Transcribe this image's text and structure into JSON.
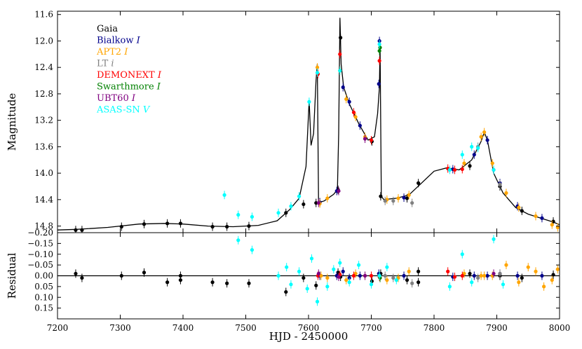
{
  "chart_data": [
    {
      "type": "scatter",
      "panel": "main",
      "xlabel": "",
      "ylabel": "Magnitude",
      "xlim": [
        7200,
        8000
      ],
      "ylim": [
        14.9,
        11.55
      ],
      "y_inverted": true,
      "yticks": [
        "11.6",
        "12.0",
        "12.4",
        "12.8",
        "13.2",
        "13.6",
        "14.0",
        "14.4",
        "14.8"
      ],
      "legend_position": "top-left",
      "legend": [
        {
          "name": "Gaia",
          "band": "",
          "color": "#000000"
        },
        {
          "name": "Bialkow",
          "band": "I",
          "color": "#00008b"
        },
        {
          "name": "APT2",
          "band": "I",
          "color": "#ffa500"
        },
        {
          "name": "LT",
          "band": "i",
          "color": "#808080"
        },
        {
          "name": "DEMONEXT",
          "band": "I",
          "color": "#ff0000"
        },
        {
          "name": "Swarthmore",
          "band": "I",
          "color": "#008000"
        },
        {
          "name": "UBT60",
          "band": "I",
          "color": "#800080"
        },
        {
          "name": "ASAS-SN",
          "band": "V",
          "color": "#00ffff"
        }
      ],
      "model_curve": {
        "color": "#000000",
        "x": [
          7200,
          7230,
          7280,
          7330,
          7370,
          7400,
          7440,
          7480,
          7520,
          7550,
          7570,
          7585,
          7596,
          7601,
          7604,
          7608,
          7612,
          7614,
          7616,
          7618,
          7625,
          7640,
          7646,
          7648,
          7650,
          7652,
          7656,
          7665,
          7680,
          7695,
          7705,
          7710,
          7713,
          7714,
          7716,
          7720,
          7740,
          7760,
          7780,
          7800,
          7820,
          7840,
          7860,
          7875,
          7880,
          7885,
          7895,
          7910,
          7930,
          7950,
          7970,
          7990,
          8000
        ],
        "y": [
          14.86,
          14.85,
          14.82,
          14.77,
          14.76,
          14.77,
          14.8,
          14.81,
          14.79,
          14.72,
          14.55,
          14.38,
          13.9,
          12.9,
          13.58,
          13.4,
          12.6,
          12.35,
          14.45,
          14.44,
          14.42,
          14.32,
          14.25,
          13.4,
          11.65,
          12.35,
          12.7,
          12.95,
          13.25,
          13.5,
          13.45,
          13.1,
          12.7,
          12.05,
          14.35,
          14.4,
          14.38,
          14.33,
          14.15,
          13.97,
          13.92,
          13.95,
          13.8,
          13.52,
          13.38,
          13.5,
          14.0,
          14.3,
          14.52,
          14.62,
          14.68,
          14.74,
          14.78
        ]
      },
      "series": [
        {
          "name": "Gaia",
          "color": "#000000",
          "points": [
            [
              7229,
              14.86
            ],
            [
              7239,
              14.86
            ],
            [
              7302,
              14.81
            ],
            [
              7338,
              14.77
            ],
            [
              7375,
              14.76
            ],
            [
              7396,
              14.76
            ],
            [
              7447,
              14.81
            ],
            [
              7470,
              14.81
            ],
            [
              7505,
              14.8
            ],
            [
              7564,
              14.6
            ],
            [
              7592,
              14.47
            ],
            [
              7612,
              14.45
            ],
            [
              7618,
              14.44
            ],
            [
              7647,
              14.25
            ],
            [
              7651,
              11.95
            ],
            [
              7701,
              13.52
            ],
            [
              7715,
              14.35
            ],
            [
              7757,
              14.38
            ],
            [
              7775,
              14.15
            ],
            [
              7857,
              13.89
            ],
            [
              7905,
              14.2
            ],
            [
              7940,
              14.57
            ],
            [
              7990,
              14.73
            ]
          ]
        },
        {
          "name": "Bialkow I",
          "color": "#00008b",
          "points": [
            [
              7618,
              14.44
            ],
            [
              7645,
              14.27
            ],
            [
              7655,
              12.7
            ],
            [
              7665,
              12.92
            ],
            [
              7682,
              13.28
            ],
            [
              7712,
              12.65
            ],
            [
              7713,
              12.0
            ],
            [
              7752,
              14.37
            ],
            [
              7830,
              13.94
            ],
            [
              7864,
              13.72
            ],
            [
              7885,
              13.5
            ],
            [
              7905,
              14.15
            ],
            [
              7933,
              14.5
            ],
            [
              7972,
              14.68
            ]
          ]
        },
        {
          "name": "APT2 I",
          "color": "#ffa500",
          "points": [
            [
              7614,
              12.4
            ],
            [
              7618,
              14.46
            ],
            [
              7630,
              14.38
            ],
            [
              7650,
              12.45
            ],
            [
              7660,
              12.88
            ],
            [
              7675,
              13.15
            ],
            [
              7690,
              13.45
            ],
            [
              7725,
              14.4
            ],
            [
              7743,
              14.38
            ],
            [
              7760,
              14.33
            ],
            [
              7848,
              13.85
            ],
            [
              7875,
              13.45
            ],
            [
              7880,
              13.38
            ],
            [
              7893,
              13.85
            ],
            [
              7915,
              14.3
            ],
            [
              7935,
              14.52
            ],
            [
              7962,
              14.65
            ],
            [
              7988,
              14.78
            ],
            [
              7997,
              14.82
            ]
          ]
        },
        {
          "name": "LT i",
          "color": "#808080",
          "points": [
            [
              7722,
              14.42
            ],
            [
              7735,
              14.42
            ],
            [
              7765,
              14.45
            ],
            [
              7870,
              13.6
            ],
            [
              7905,
              14.17
            ]
          ]
        },
        {
          "name": "DEMONEXT I",
          "color": "#ff0000",
          "points": [
            [
              7615,
              12.5
            ],
            [
              7650,
              12.2
            ],
            [
              7672,
              13.08
            ],
            [
              7700,
              13.5
            ],
            [
              7713,
              12.3
            ],
            [
              7822,
              13.93
            ],
            [
              7833,
              13.95
            ],
            [
              7845,
              13.94
            ]
          ]
        },
        {
          "name": "Swarthmore I",
          "color": "#008000",
          "points": [
            [
              7713,
              12.15
            ],
            [
              7714,
              12.1
            ]
          ]
        },
        {
          "name": "UBT60 I",
          "color": "#800080",
          "points": [
            [
              7616,
              14.45
            ],
            [
              7648,
              14.27
            ],
            [
              7690,
              13.48
            ],
            [
              7895,
              13.95
            ]
          ]
        },
        {
          "name": "ASAS-SN V",
          "color": "#00ffff",
          "points": [
            [
              7466,
              14.33
            ],
            [
              7488,
              14.63
            ],
            [
              7510,
              14.66
            ],
            [
              7552,
              14.6
            ],
            [
              7572,
              14.5
            ],
            [
              7585,
              14.35
            ],
            [
              7601,
              12.92
            ],
            [
              7614,
              12.48
            ],
            [
              7650,
              12.45
            ],
            [
              7713,
              12.05
            ],
            [
              7825,
              13.95
            ],
            [
              7845,
              13.72
            ],
            [
              7860,
              13.6
            ],
            [
              7870,
              13.62
            ],
            [
              7895,
              13.95
            ]
          ]
        }
      ]
    },
    {
      "type": "scatter",
      "panel": "residual",
      "xlabel": "HJD - 2450000",
      "ylabel": "Residual",
      "xlim": [
        7200,
        8000
      ],
      "ylim": [
        0.2,
        -0.2
      ],
      "y_inverted": true,
      "yticks": [
        "−0.20",
        "−0.15",
        "−0.10",
        "−0.05",
        "0.00",
        "0.05",
        "0.10",
        "0.15"
      ],
      "xticks": [
        "7200",
        "7300",
        "7400",
        "7500",
        "7600",
        "7700",
        "7800",
        "7900",
        "8000"
      ],
      "zero_line": true,
      "series": [
        {
          "name": "Gaia",
          "color": "#000000",
          "points": [
            [
              7229,
              -0.01
            ],
            [
              7239,
              0.01
            ],
            [
              7302,
              0.0
            ],
            [
              7338,
              -0.015
            ],
            [
              7375,
              0.03
            ],
            [
              7396,
              0.0
            ],
            [
              7396,
              0.02
            ],
            [
              7447,
              0.03
            ],
            [
              7470,
              0.035
            ],
            [
              7505,
              0.035
            ],
            [
              7564,
              0.075
            ],
            [
              7592,
              0.01
            ],
            [
              7612,
              0.045
            ],
            [
              7647,
              -0.015
            ],
            [
              7651,
              0.005
            ],
            [
              7701,
              0.025
            ],
            [
              7715,
              -0.01
            ],
            [
              7757,
              0.02
            ],
            [
              7775,
              -0.02
            ],
            [
              7775,
              0.03
            ],
            [
              7857,
              -0.01
            ],
            [
              7905,
              0.0
            ],
            [
              7940,
              0.01
            ],
            [
              7990,
              -0.005
            ]
          ]
        },
        {
          "name": "Bialkow I",
          "color": "#00008b",
          "points": [
            [
              7618,
              0.0
            ],
            [
              7645,
              0.0
            ],
            [
              7655,
              -0.02
            ],
            [
              7665,
              0.01
            ],
            [
              7682,
              0.0
            ],
            [
              7712,
              -0.01
            ],
            [
              7752,
              0.0
            ],
            [
              7830,
              0.005
            ],
            [
              7864,
              0.0
            ],
            [
              7885,
              0.0
            ],
            [
              7905,
              -0.01
            ],
            [
              7933,
              0.0
            ],
            [
              7972,
              0.0
            ]
          ]
        },
        {
          "name": "APT2 I",
          "color": "#ffa500",
          "points": [
            [
              7620,
              0.0
            ],
            [
              7630,
              0.01
            ],
            [
              7660,
              0.02
            ],
            [
              7675,
              -0.01
            ],
            [
              7690,
              0.0
            ],
            [
              7725,
              0.02
            ],
            [
              7743,
              0.01
            ],
            [
              7760,
              -0.02
            ],
            [
              7848,
              -0.01
            ],
            [
              7875,
              0.0
            ],
            [
              7880,
              0.0
            ],
            [
              7893,
              0.0
            ],
            [
              7915,
              -0.05
            ],
            [
              7935,
              0.03
            ],
            [
              7950,
              -0.04
            ],
            [
              7962,
              -0.02
            ],
            [
              7975,
              0.05
            ],
            [
              7988,
              0.02
            ],
            [
              7997,
              -0.03
            ]
          ]
        },
        {
          "name": "LT i",
          "color": "#808080",
          "points": [
            [
              7722,
              0.0
            ],
            [
              7735,
              0.01
            ],
            [
              7765,
              0.035
            ],
            [
              7870,
              0.01
            ],
            [
              7905,
              -0.01
            ]
          ]
        },
        {
          "name": "DEMONEXT I",
          "color": "#ff0000",
          "points": [
            [
              7615,
              0.0
            ],
            [
              7650,
              -0.005
            ],
            [
              7672,
              0.0
            ],
            [
              7700,
              0.0
            ],
            [
              7713,
              0.005
            ],
            [
              7822,
              -0.02
            ],
            [
              7833,
              0.005
            ],
            [
              7845,
              0.0
            ]
          ]
        },
        {
          "name": "Swarthmore I",
          "color": "#008000",
          "points": [
            [
              7713,
              0.0
            ],
            [
              7714,
              0.01
            ]
          ]
        },
        {
          "name": "UBT60 I",
          "color": "#800080",
          "points": [
            [
              7616,
              -0.01
            ],
            [
              7648,
              0.005
            ],
            [
              7690,
              0.0
            ],
            [
              7895,
              -0.01
            ]
          ]
        },
        {
          "name": "ASAS-SN V",
          "color": "#00ffff",
          "points": [
            [
              7488,
              -0.165
            ],
            [
              7510,
              -0.12
            ],
            [
              7552,
              0.0
            ],
            [
              7565,
              -0.04
            ],
            [
              7572,
              0.04
            ],
            [
              7585,
              -0.02
            ],
            [
              7598,
              0.06
            ],
            [
              7605,
              -0.08
            ],
            [
              7614,
              0.12
            ],
            [
              7630,
              0.05
            ],
            [
              7640,
              -0.03
            ],
            [
              7650,
              -0.06
            ],
            [
              7665,
              0.03
            ],
            [
              7680,
              -0.05
            ],
            [
              7700,
              0.04
            ],
            [
              7713,
              0.0
            ],
            [
              7725,
              -0.04
            ],
            [
              7740,
              0.02
            ],
            [
              7825,
              0.05
            ],
            [
              7845,
              -0.1
            ],
            [
              7860,
              0.03
            ],
            [
              7895,
              -0.17
            ],
            [
              7910,
              0.04
            ]
          ]
        }
      ]
    }
  ]
}
